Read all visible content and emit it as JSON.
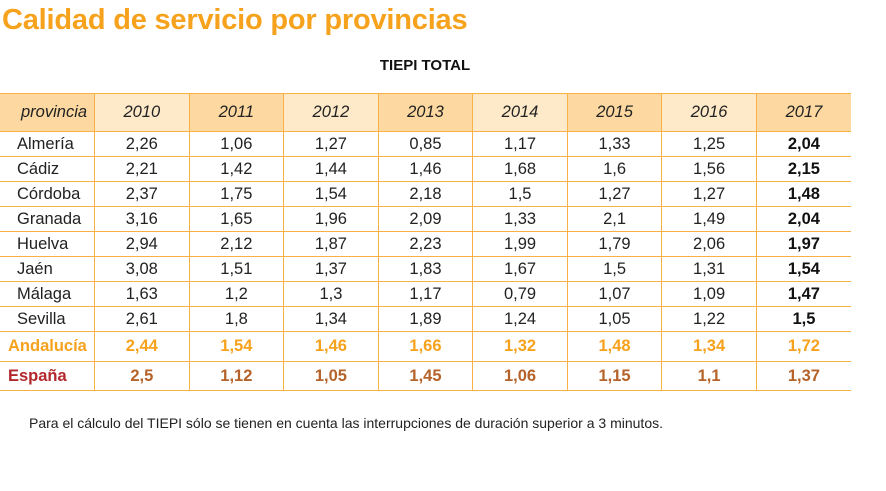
{
  "title": "Calidad de servicio por provincias",
  "subtitle": "TIEPI TOTAL",
  "note": "Para el cálculo del TIEPI sólo se tienen en cuenta las interrupciones de duración superior a 3 minutos.",
  "colors": {
    "accent": "#f6a21d",
    "header_dark": "#fdd9a1",
    "header_light": "#fee9c9",
    "border": "#f7b144",
    "espana_label": "#b3282d",
    "espana_values": "#b5632a"
  },
  "chart_data": {
    "type": "table",
    "title": "TIEPI TOTAL",
    "columns": [
      "provincia",
      "2010",
      "2011",
      "2012",
      "2013",
      "2014",
      "2015",
      "2016",
      "2017"
    ],
    "rows": [
      [
        "Almería",
        "2,26",
        "1,06",
        "1,27",
        "0,85",
        "1,17",
        "1,33",
        "1,25",
        "2,04"
      ],
      [
        "Cádiz",
        "2,21",
        "1,42",
        "1,44",
        "1,46",
        "1,68",
        "1,6",
        "1,56",
        "2,15"
      ],
      [
        "Córdoba",
        "2,37",
        "1,75",
        "1,54",
        "2,18",
        "1,5",
        "1,27",
        "1,27",
        "1,48"
      ],
      [
        "Granada",
        "3,16",
        "1,65",
        "1,96",
        "2,09",
        "1,33",
        "2,1",
        "1,49",
        "2,04"
      ],
      [
        "Huelva",
        "2,94",
        "2,12",
        "1,87",
        "2,23",
        "1,99",
        "1,79",
        "2,06",
        "1,97"
      ],
      [
        "Jaén",
        "3,08",
        "1,51",
        "1,37",
        "1,83",
        "1,67",
        "1,5",
        "1,31",
        "1,54"
      ],
      [
        "Málaga",
        "1,63",
        "1,2",
        "1,3",
        "1,17",
        "0,79",
        "1,07",
        "1,09",
        "1,47"
      ],
      [
        "Sevilla",
        "2,61",
        "1,8",
        "1,34",
        "1,89",
        "1,24",
        "1,05",
        "1,22",
        "1,5"
      ],
      [
        "Andalucía",
        "2,44",
        "1,54",
        "1,46",
        "1,66",
        "1,32",
        "1,48",
        "1,34",
        "1,72"
      ],
      [
        "España",
        "2,5",
        "1,12",
        "1,05",
        "1,45",
        "1,06",
        "1,15",
        "1,1",
        "1,37"
      ]
    ]
  }
}
